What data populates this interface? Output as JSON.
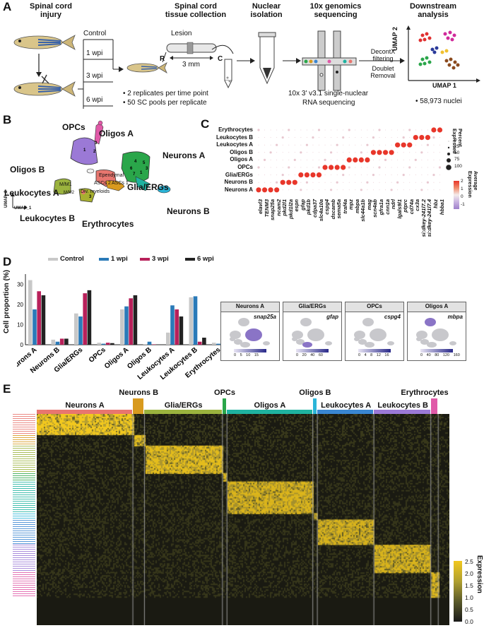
{
  "panels": [
    "A",
    "B",
    "C",
    "D",
    "E"
  ],
  "colors": {
    "neurons_a": "#e8766f",
    "neurons_b": "#d89a1e",
    "glia": "#9bb33e",
    "opcs": "#2aa64a",
    "oligos_a": "#1fb2a0",
    "oligos_b": "#2bb5d8",
    "leuk_a": "#3a86d1",
    "leuk_b": "#9b79d6",
    "eryth": "#e05aa8",
    "control": "#c8c8c8",
    "wpi1": "#2a7ab8",
    "wpi3": "#b8205a",
    "wpi6": "#222222"
  },
  "panel_a": {
    "step1": "Spinal cord\ninjury",
    "step2": "Spinal cord\ntissue collection",
    "step3": "Nuclear\nisolation",
    "step4": "10x genomics\nsequencing",
    "step5": "Downstream\nanalysis",
    "control": "Control",
    "wpi1": "1 wpi",
    "wpi3": "3 wpi",
    "wpi6": "6 wpi",
    "lesion": "Lesion",
    "r": "R",
    "c": "C",
    "mm": "3 mm",
    "bullet1": "• 2 replicates per time point",
    "bullet2": "• 50 SC pools per replicate",
    "seq_caption1": "10x 3' v3.1 single-nuclear",
    "seq_caption2": "RNA sequencing",
    "decontx": "DecontX\nfiltering",
    "doublet": "Doublet\nRemoval",
    "umap1": "UMAP 1",
    "umap2": "UMAP 2",
    "nuclei": "• 58,973 nuclei"
  },
  "panel_b": {
    "labels": [
      "OPCs",
      "Oligos A",
      "Oligos B",
      "Neurons A",
      "Leukocytes A",
      "Glia/ERGs",
      "Neurons B",
      "Leukocytes B",
      "Erythrocytes"
    ],
    "sub": [
      "Ependymal",
      "ASCs 2",
      "ASCs 1",
      "Div. myeloids",
      "M/M1",
      "M/M2"
    ],
    "umap1": "UMAP_1",
    "umap2": "UMAP_2"
  },
  "panel_c": {
    "rows": [
      "Erythrocytes",
      "Leukocytes B",
      "Leukocytes A",
      "Oligos B",
      "Oligos A",
      "OPCs",
      "Glia/ERGs",
      "Neurons B",
      "Neurons A"
    ],
    "genes": [
      "elavl3",
      "TENM3",
      "snap25a",
      "ncam2",
      "pkd2l1",
      "pkd1l2a",
      "espn",
      "gfap",
      "pkd1b",
      "cdpa37",
      "slc4a10a",
      "cspg4",
      "dscamb",
      "sema5a",
      "traf4a",
      "mpz",
      "mbpa",
      "slc44a1b",
      "mag",
      "scn4ab",
      "gfra1a",
      "cnn1a",
      "ndrl",
      "lgals9l1",
      "ptprc",
      "cd74a",
      "cx3a",
      "si:dkey-241l7.2",
      "si:dkey-241l7.4",
      "hbz",
      "hbba1"
    ],
    "legend_pct_title": "Percent\nExpressed",
    "pct_ticks": [
      "0",
      "25",
      "50",
      "75",
      "100"
    ],
    "legend_avg_title": "Average\nExpression",
    "avg_ticks": [
      "2",
      "1",
      "0",
      "-1"
    ]
  },
  "panel_d": {
    "ylabel": "Cell proportion (%)",
    "legend": [
      "Control",
      "1 wpi",
      "3 wpi",
      "6 wpi"
    ],
    "yticks": [
      "0",
      "10",
      "20",
      "30"
    ],
    "feature_titles": [
      "Neurons A",
      "Glia/ERGs",
      "OPCs",
      "Oligos A"
    ],
    "feature_genes": [
      "snap25a",
      "gfap",
      "cspg4",
      "mbpa"
    ],
    "feature_scales": [
      "0 5 10 15",
      "0 20 40 60",
      "0 4 8 12 16",
      "0 40 80 120 160"
    ]
  },
  "chart_data": {
    "type": "bar",
    "categories": [
      "Neurons A",
      "Neurons B",
      "Glia/ERGs",
      "OPCs",
      "Oligos A",
      "Oligos B",
      "Leukocytes A",
      "Leukocytes B",
      "Erythrocytes"
    ],
    "series": [
      {
        "name": "Control",
        "values": [
          32,
          2.5,
          15.5,
          1,
          17.5,
          0.3,
          6,
          23.5,
          1
        ]
      },
      {
        "name": "1 wpi",
        "values": [
          17.5,
          1.5,
          14,
          0.5,
          19,
          1.5,
          19.5,
          24,
          0.5
        ]
      },
      {
        "name": "3 wpi",
        "values": [
          26.5,
          3,
          25.5,
          1,
          23,
          0.2,
          17.5,
          1.5,
          0.5
        ]
      },
      {
        "name": "6 wpi",
        "values": [
          24.5,
          3,
          27,
          0.8,
          24.5,
          0.1,
          14,
          3.5,
          0.8
        ]
      }
    ],
    "ylabel": "Cell proportion (%)",
    "ylim": [
      0,
      35
    ]
  },
  "panel_e": {
    "groups": [
      "Neurons A",
      "Neurons B",
      "Glia/ERGs",
      "OPCs",
      "Oligos A",
      "Oligos B",
      "Leukocytes A",
      "Leukocytes B",
      "Erythrocytes"
    ],
    "group_frac": [
      0.233,
      0.028,
      0.189,
      0.011,
      0.208,
      0.011,
      0.137,
      0.138,
      0.018
    ],
    "legend_title": "Expression",
    "legend_ticks": [
      "2.5",
      "2.0",
      "1.5",
      "1.0",
      "0.5",
      "0.0"
    ]
  }
}
